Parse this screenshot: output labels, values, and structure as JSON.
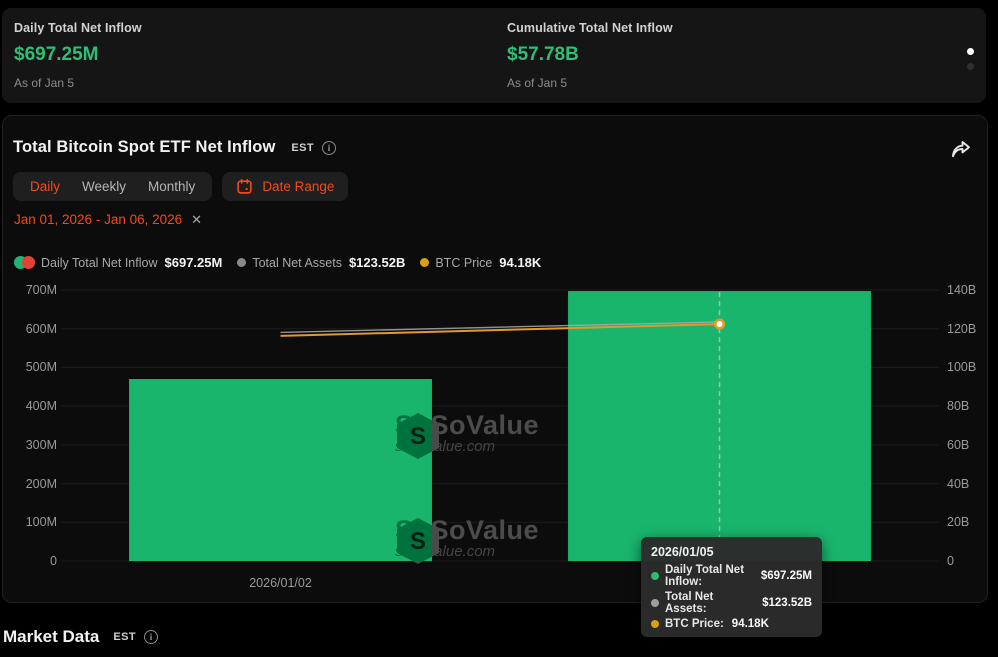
{
  "stats": {
    "cards": [
      {
        "label": "Daily Total Net Inflow",
        "value": "$697.25M",
        "asof": "As of Jan 5"
      },
      {
        "label": "Cumulative Total Net Inflow",
        "value": "$57.78B",
        "asof": "As of Jan 5"
      }
    ]
  },
  "chart_card": {
    "title": "Total Bitcoin Spot ETF Net Inflow",
    "timezone": "EST",
    "tabs": [
      "Daily",
      "Weekly",
      "Monthly"
    ],
    "active_tab": "Daily",
    "date_range_label": "Date Range",
    "selected_range": "Jan 01, 2026 - Jan 06, 2026",
    "clear_icon": "✕",
    "legend": [
      {
        "label": "Daily Total Net Inflow",
        "value": "$697.25M"
      },
      {
        "label": "Total Net Assets",
        "value": "$123.52B"
      },
      {
        "label": "BTC Price",
        "value": "94.18K"
      }
    ],
    "watermark": {
      "brand": "SoSoValue",
      "domain": "sosovalue.com"
    }
  },
  "chart_data": {
    "type": "bar",
    "categories": [
      "2026/01/02",
      "2026/01/05"
    ],
    "series": [
      {
        "name": "Daily Total Net Inflow",
        "type": "bar",
        "unit": "USD(M)",
        "values": [
          470,
          697.25
        ],
        "color": "#19b56d"
      },
      {
        "name": "Total Net Assets",
        "type": "line",
        "unit": "USD(B)",
        "values": [
          118.1,
          123.52
        ],
        "color": "#a9a9a9"
      },
      {
        "name": "BTC Price",
        "type": "line",
        "unit": "K",
        "values": [
          93.1,
          94.18
        ],
        "color": "#e09a2d"
      }
    ],
    "left_axis": {
      "label": "Net Inflow",
      "ticks": [
        "700M",
        "600M",
        "500M",
        "400M",
        "300M",
        "200M",
        "100M",
        "0"
      ],
      "max": 700,
      "min": 0
    },
    "right_axis": {
      "label": "Total Net Assets",
      "ticks": [
        "140B",
        "120B",
        "100B",
        "80B",
        "60B",
        "40B",
        "20B",
        "0"
      ],
      "max": 140,
      "min": 0
    },
    "x_labels_visible": [
      "2026/01/02"
    ],
    "grid": true,
    "legend_position": "top-left",
    "highlighted_category": "2026/01/05"
  },
  "tooltip": {
    "date": "2026/01/05",
    "rows": [
      {
        "label": "Daily Total Net Inflow:",
        "value": "$697.25M",
        "color": "#2ebd70"
      },
      {
        "label": "Total Net Assets:",
        "value": "$123.52B",
        "color": "#9e9e9e"
      },
      {
        "label": "BTC Price:",
        "value": "94.18K",
        "color": "#d9a013"
      }
    ]
  },
  "market_data": {
    "title": "Market Data",
    "timezone": "EST"
  },
  "colors": {
    "accent_orange": "#f4481c",
    "positive_green": "#2fbe75",
    "bar_green": "#19b56d",
    "btc_yellow": "#d9a013",
    "outflow_red": "#e14334"
  }
}
